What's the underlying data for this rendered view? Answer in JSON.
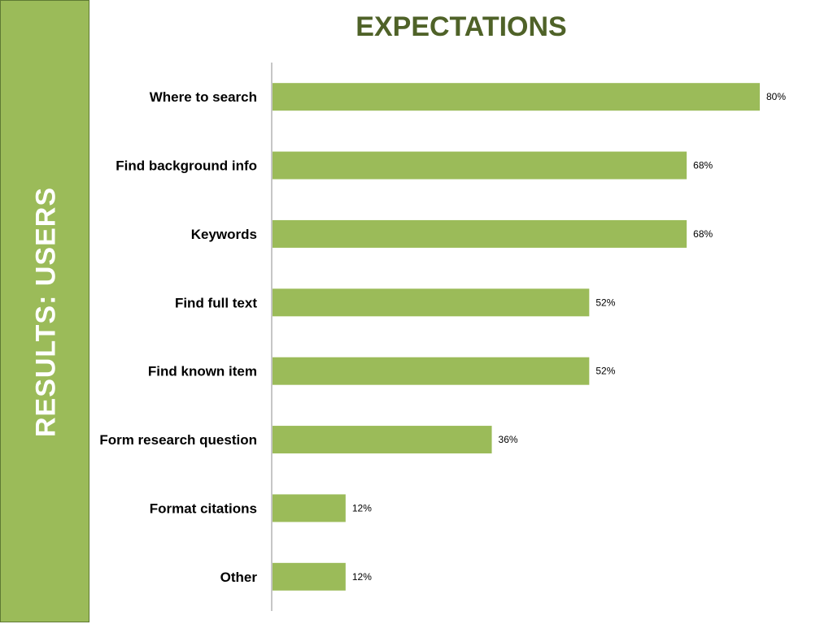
{
  "sidebar": {
    "title": "RESULTS: USERS"
  },
  "chart_data": {
    "type": "bar",
    "orientation": "horizontal",
    "title": "EXPECTATIONS",
    "categories": [
      "Where to search",
      "Find background info",
      "Keywords",
      "Find full text",
      "Find known item",
      "Form research question",
      "Format citations",
      "Other"
    ],
    "values": [
      80,
      68,
      68,
      52,
      52,
      36,
      12,
      12
    ],
    "value_labels": [
      "80%",
      "68%",
      "68%",
      "52%",
      "52%",
      "36%",
      "12%",
      "12%"
    ],
    "xlabel": "",
    "ylabel": "",
    "xlim": [
      0,
      80
    ],
    "grid": false,
    "legend": "none",
    "colors": {
      "bar": "#9bbb59",
      "title": "#4f6228",
      "sidebar": "#9bbb59"
    }
  }
}
